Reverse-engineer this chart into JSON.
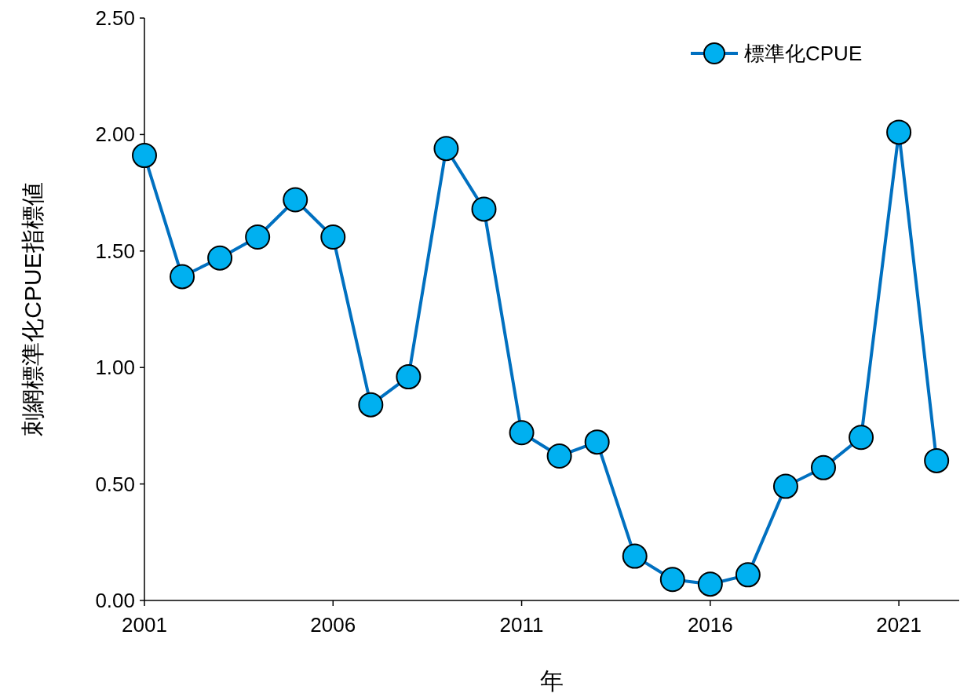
{
  "chart_data": {
    "type": "line",
    "xlabel": "年",
    "ylabel": "刺網標準化CPUE指標値",
    "x": [
      2001,
      2002,
      2003,
      2004,
      2005,
      2006,
      2007,
      2008,
      2009,
      2010,
      2011,
      2012,
      2013,
      2014,
      2015,
      2016,
      2017,
      2018,
      2019,
      2020,
      2021,
      2022
    ],
    "series": [
      {
        "name": "標準化CPUE",
        "color": "#0070c0",
        "values": [
          1.91,
          1.39,
          1.47,
          1.56,
          1.72,
          1.56,
          0.84,
          0.96,
          1.94,
          1.68,
          0.72,
          0.62,
          0.68,
          0.19,
          0.09,
          0.07,
          0.11,
          0.49,
          0.57,
          0.7,
          2.01,
          0.6
        ]
      }
    ],
    "xlim": [
      2001,
      2022.6
    ],
    "xticks": [
      2001,
      2006,
      2011,
      2016,
      2021
    ],
    "ylim": [
      0,
      2.5
    ],
    "yticks": [
      {
        "value": 0,
        "label": "0.00"
      },
      {
        "value": 0.5,
        "label": "0.50"
      },
      {
        "value": 1,
        "label": "1.00"
      },
      {
        "value": 1.5,
        "label": "1.50"
      },
      {
        "value": 2,
        "label": "2.00"
      },
      {
        "value": 2.5,
        "label": "2.50"
      }
    ],
    "grid": false,
    "legend": "top right",
    "marker": "circle",
    "line_style": "solid"
  }
}
